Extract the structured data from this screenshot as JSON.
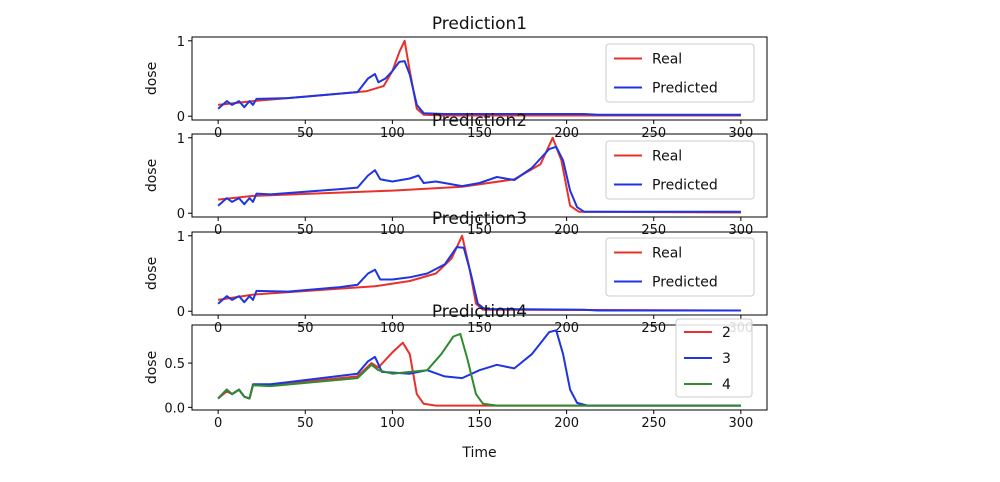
{
  "chart_data": [
    {
      "type": "line",
      "title": "Prediction1",
      "xlabel": "",
      "ylabel": "dose",
      "xlim": [
        -15,
        315
      ],
      "ylim": [
        -0.05,
        1.05
      ],
      "xticks": [
        0,
        50,
        100,
        150,
        200,
        250,
        300
      ],
      "yticks": [
        0,
        1
      ],
      "legend": "top-right",
      "series": [
        {
          "name": "Real",
          "color": "#e8312b",
          "points": [
            [
              0,
              0.15
            ],
            [
              20,
              0.2
            ],
            [
              60,
              0.28
            ],
            [
              85,
              0.33
            ],
            [
              95,
              0.4
            ],
            [
              100,
              0.6
            ],
            [
              104,
              0.85
            ],
            [
              107,
              1.0
            ],
            [
              110,
              0.6
            ],
            [
              114,
              0.1
            ],
            [
              118,
              0.02
            ],
            [
              130,
              0.01
            ],
            [
              300,
              0.01
            ]
          ]
        },
        {
          "name": "Predicted",
          "color": "#1f35e0",
          "points": [
            [
              0,
              0.1
            ],
            [
              5,
              0.2
            ],
            [
              8,
              0.15
            ],
            [
              12,
              0.2
            ],
            [
              15,
              0.12
            ],
            [
              18,
              0.2
            ],
            [
              20,
              0.15
            ],
            [
              22,
              0.23
            ],
            [
              40,
              0.24
            ],
            [
              70,
              0.3
            ],
            [
              80,
              0.32
            ],
            [
              86,
              0.5
            ],
            [
              90,
              0.56
            ],
            [
              92,
              0.45
            ],
            [
              96,
              0.5
            ],
            [
              100,
              0.6
            ],
            [
              104,
              0.72
            ],
            [
              107,
              0.73
            ],
            [
              110,
              0.55
            ],
            [
              114,
              0.15
            ],
            [
              118,
              0.04
            ],
            [
              130,
              0.03
            ],
            [
              210,
              0.03
            ],
            [
              218,
              0.02
            ],
            [
              300,
              0.02
            ]
          ]
        }
      ]
    },
    {
      "type": "line",
      "title": "Prediction2",
      "xlabel": "",
      "ylabel": "dose",
      "xlim": [
        -15,
        315
      ],
      "ylim": [
        -0.05,
        1.05
      ],
      "xticks": [
        0,
        50,
        100,
        150,
        200,
        250,
        300
      ],
      "yticks": [
        0,
        1
      ],
      "legend": "top-right",
      "series": [
        {
          "name": "Real",
          "color": "#e8312b",
          "points": [
            [
              0,
              0.18
            ],
            [
              20,
              0.23
            ],
            [
              100,
              0.3
            ],
            [
              140,
              0.35
            ],
            [
              170,
              0.45
            ],
            [
              185,
              0.65
            ],
            [
              192,
              1.0
            ],
            [
              197,
              0.7
            ],
            [
              202,
              0.1
            ],
            [
              207,
              0.02
            ],
            [
              300,
              0.01
            ]
          ]
        },
        {
          "name": "Predicted",
          "color": "#1f35e0",
          "points": [
            [
              0,
              0.1
            ],
            [
              5,
              0.2
            ],
            [
              8,
              0.15
            ],
            [
              12,
              0.2
            ],
            [
              15,
              0.12
            ],
            [
              18,
              0.2
            ],
            [
              20,
              0.15
            ],
            [
              22,
              0.26
            ],
            [
              30,
              0.25
            ],
            [
              70,
              0.32
            ],
            [
              80,
              0.34
            ],
            [
              86,
              0.5
            ],
            [
              90,
              0.57
            ],
            [
              93,
              0.45
            ],
            [
              100,
              0.42
            ],
            [
              110,
              0.46
            ],
            [
              115,
              0.5
            ],
            [
              118,
              0.4
            ],
            [
              125,
              0.42
            ],
            [
              140,
              0.36
            ],
            [
              150,
              0.4
            ],
            [
              160,
              0.48
            ],
            [
              170,
              0.44
            ],
            [
              180,
              0.6
            ],
            [
              190,
              0.85
            ],
            [
              194,
              0.88
            ],
            [
              198,
              0.7
            ],
            [
              202,
              0.3
            ],
            [
              206,
              0.08
            ],
            [
              210,
              0.02
            ],
            [
              300,
              0.02
            ]
          ]
        }
      ]
    },
    {
      "type": "line",
      "title": "Prediction3",
      "xlabel": "",
      "ylabel": "dose",
      "xlim": [
        -15,
        315
      ],
      "ylim": [
        -0.05,
        1.05
      ],
      "xticks": [
        0,
        50,
        100,
        150,
        200,
        250,
        300
      ],
      "yticks": [
        0,
        1
      ],
      "legend": "top-right",
      "series": [
        {
          "name": "Real",
          "color": "#e8312b",
          "points": [
            [
              0,
              0.15
            ],
            [
              20,
              0.22
            ],
            [
              90,
              0.33
            ],
            [
              110,
              0.4
            ],
            [
              125,
              0.5
            ],
            [
              134,
              0.7
            ],
            [
              140,
              1.0
            ],
            [
              144,
              0.6
            ],
            [
              148,
              0.1
            ],
            [
              152,
              0.02
            ],
            [
              300,
              0.01
            ]
          ]
        },
        {
          "name": "Predicted",
          "color": "#1f35e0",
          "points": [
            [
              0,
              0.1
            ],
            [
              5,
              0.2
            ],
            [
              8,
              0.15
            ],
            [
              12,
              0.2
            ],
            [
              15,
              0.12
            ],
            [
              18,
              0.2
            ],
            [
              20,
              0.15
            ],
            [
              22,
              0.27
            ],
            [
              40,
              0.26
            ],
            [
              70,
              0.32
            ],
            [
              80,
              0.35
            ],
            [
              86,
              0.5
            ],
            [
              90,
              0.55
            ],
            [
              93,
              0.42
            ],
            [
              100,
              0.42
            ],
            [
              110,
              0.45
            ],
            [
              120,
              0.5
            ],
            [
              130,
              0.62
            ],
            [
              137,
              0.85
            ],
            [
              141,
              0.84
            ],
            [
              145,
              0.5
            ],
            [
              149,
              0.1
            ],
            [
              153,
              0.03
            ],
            [
              210,
              0.02
            ],
            [
              218,
              0.01
            ],
            [
              300,
              0.01
            ]
          ]
        }
      ]
    },
    {
      "type": "line",
      "title": "Prediction4",
      "xlabel": "Time",
      "ylabel": "dose",
      "xlim": [
        -15,
        315
      ],
      "ylim": [
        -0.03,
        0.93
      ],
      "xticks": [
        0,
        50,
        100,
        150,
        200,
        250,
        300
      ],
      "yticks": [
        0.0,
        0.5
      ],
      "legend": "top-right",
      "series": [
        {
          "name": "2",
          "color": "#e8312b",
          "points": [
            [
              0,
              0.1
            ],
            [
              5,
              0.18
            ],
            [
              8,
              0.15
            ],
            [
              12,
              0.2
            ],
            [
              15,
              0.12
            ],
            [
              18,
              0.1
            ],
            [
              20,
              0.25
            ],
            [
              30,
              0.25
            ],
            [
              80,
              0.35
            ],
            [
              88,
              0.5
            ],
            [
              92,
              0.45
            ],
            [
              100,
              0.62
            ],
            [
              106,
              0.73
            ],
            [
              110,
              0.6
            ],
            [
              114,
              0.15
            ],
            [
              118,
              0.04
            ],
            [
              125,
              0.02
            ],
            [
              300,
              0.02
            ]
          ]
        },
        {
          "name": "3",
          "color": "#1f35e0",
          "points": [
            [
              0,
              0.1
            ],
            [
              5,
              0.2
            ],
            [
              8,
              0.15
            ],
            [
              12,
              0.2
            ],
            [
              15,
              0.12
            ],
            [
              18,
              0.1
            ],
            [
              20,
              0.26
            ],
            [
              30,
              0.26
            ],
            [
              80,
              0.38
            ],
            [
              86,
              0.52
            ],
            [
              90,
              0.57
            ],
            [
              94,
              0.4
            ],
            [
              110,
              0.38
            ],
            [
              120,
              0.42
            ],
            [
              130,
              0.35
            ],
            [
              140,
              0.33
            ],
            [
              150,
              0.42
            ],
            [
              160,
              0.48
            ],
            [
              170,
              0.44
            ],
            [
              180,
              0.6
            ],
            [
              190,
              0.85
            ],
            [
              194,
              0.87
            ],
            [
              198,
              0.6
            ],
            [
              202,
              0.2
            ],
            [
              206,
              0.05
            ],
            [
              212,
              0.02
            ],
            [
              300,
              0.02
            ]
          ]
        },
        {
          "name": "4",
          "color": "#2e8b2e",
          "points": [
            [
              0,
              0.1
            ],
            [
              5,
              0.2
            ],
            [
              8,
              0.15
            ],
            [
              12,
              0.2
            ],
            [
              15,
              0.12
            ],
            [
              18,
              0.1
            ],
            [
              20,
              0.25
            ],
            [
              30,
              0.24
            ],
            [
              80,
              0.33
            ],
            [
              88,
              0.48
            ],
            [
              92,
              0.42
            ],
            [
              100,
              0.38
            ],
            [
              110,
              0.4
            ],
            [
              120,
              0.42
            ],
            [
              128,
              0.6
            ],
            [
              135,
              0.8
            ],
            [
              139,
              0.83
            ],
            [
              143,
              0.55
            ],
            [
              148,
              0.15
            ],
            [
              152,
              0.04
            ],
            [
              160,
              0.02
            ],
            [
              300,
              0.02
            ]
          ]
        }
      ]
    }
  ]
}
